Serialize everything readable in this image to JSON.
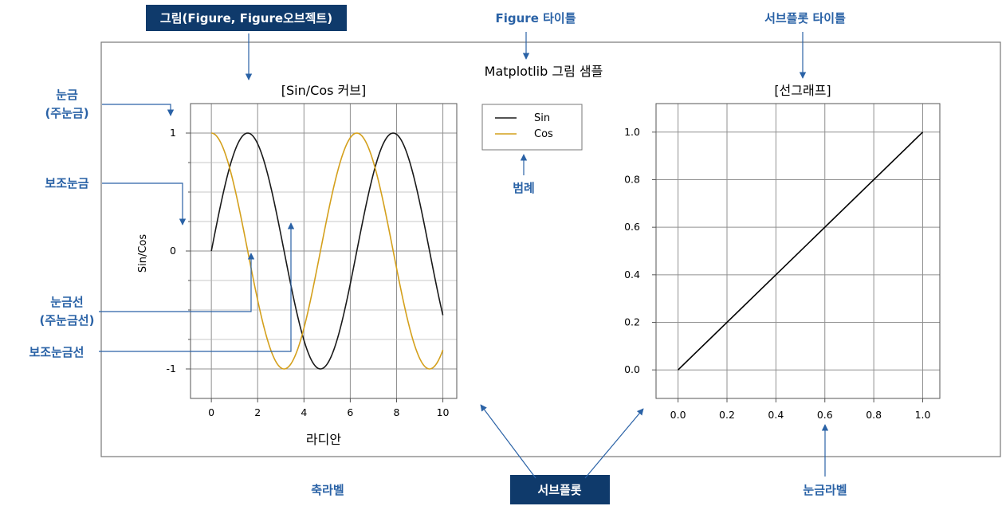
{
  "callouts": {
    "figure_label": "그림(Figure, Figure오브젝트)",
    "figure_title_label": "Figure 타이틀",
    "subplot_title_label": "서브플롯 타이틀",
    "tick_label_1": "눈금",
    "tick_label_2": "(주눈금)",
    "minor_tick_label": "보조눈금",
    "gridline_label_1": "눈금선",
    "gridline_label_2": "(주눈금선)",
    "minor_gridline_label": "보조눈금선",
    "legend_label": "범례",
    "axis_label_label": "축라벨",
    "subplot_label": "서브플롯",
    "tick_value_label": "눈금라벨"
  },
  "colors": {
    "accent": "#2a62a6",
    "dark_box": "#0f3a6b",
    "sin": "#1a1a1a",
    "cos": "#d4a01c"
  },
  "chart_data": [
    {
      "type": "line",
      "suptitle": "Matplotlib 그림 샘플",
      "title": "[Sin/Cos 커브]",
      "xlabel": "라디안",
      "ylabel": "Sin/Cos",
      "xlim": [
        -0.9,
        10.6
      ],
      "ylim": [
        -1.25,
        1.25
      ],
      "xticks": [
        0,
        2,
        4,
        6,
        8,
        10
      ],
      "xtick_labels": [
        "0",
        "2",
        "4",
        "6",
        "8",
        "10"
      ],
      "yticks": [
        -1,
        0,
        1
      ],
      "ytick_labels": [
        "-1",
        "0",
        "1"
      ],
      "minor_yticks": [
        -0.75,
        -0.5,
        -0.25,
        0.25,
        0.5,
        0.75
      ],
      "grid": true,
      "legend": "top-right outside",
      "series": [
        {
          "name": "Sin",
          "function": "sin",
          "x_range": [
            0,
            10
          ]
        },
        {
          "name": "Cos",
          "function": "cos",
          "x_range": [
            0,
            10
          ]
        }
      ]
    },
    {
      "type": "line",
      "title": "[선그래프]",
      "xlim": [
        -0.09,
        1.07
      ],
      "ylim": [
        -0.12,
        1.12
      ],
      "xticks": [
        0.0,
        0.2,
        0.4,
        0.6,
        0.8,
        1.0
      ],
      "xtick_labels": [
        "0.0",
        "0.2",
        "0.4",
        "0.6",
        "0.8",
        "1.0"
      ],
      "yticks": [
        0.0,
        0.2,
        0.4,
        0.6,
        0.8,
        1.0
      ],
      "ytick_labels": [
        "0.0",
        "0.2",
        "0.4",
        "0.6",
        "0.8",
        "1.0"
      ],
      "grid": true,
      "series": [
        {
          "x": [
            0.0,
            1.0
          ],
          "y": [
            0.0,
            1.0
          ]
        }
      ]
    }
  ]
}
